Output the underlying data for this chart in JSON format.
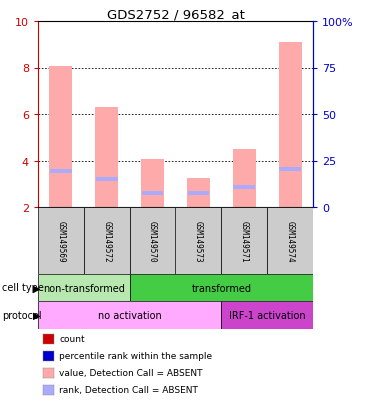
{
  "title": "GDS2752 / 96582_at",
  "samples": [
    "GSM149569",
    "GSM149572",
    "GSM149570",
    "GSM149573",
    "GSM149571",
    "GSM149574"
  ],
  "bar_bottom": 2.0,
  "pink_tops": [
    8.05,
    6.3,
    4.05,
    3.25,
    4.5,
    9.1
  ],
  "blue_vals": [
    3.55,
    3.2,
    2.6,
    2.6,
    2.85,
    3.65
  ],
  "ylim_left": [
    2,
    10
  ],
  "ylim_right": [
    0,
    100
  ],
  "yticks_left": [
    2,
    4,
    6,
    8,
    10
  ],
  "yticks_right": [
    0,
    25,
    50,
    75,
    100
  ],
  "ytick_labels_left": [
    "2",
    "4",
    "6",
    "8",
    "10"
  ],
  "ytick_labels_right": [
    "0",
    "25",
    "50",
    "75",
    "100%"
  ],
  "cell_type_label": "cell type",
  "protocol_label": "protocol",
  "cell_type_groups": [
    {
      "label": "non-transformed",
      "start": 0,
      "end": 2,
      "color": "#b8e8b0"
    },
    {
      "label": "transformed",
      "start": 2,
      "end": 6,
      "color": "#44cc44"
    }
  ],
  "protocol_groups": [
    {
      "label": "no activation",
      "start": 0,
      "end": 4,
      "color": "#ffaaff"
    },
    {
      "label": "IRF-1 activation",
      "start": 4,
      "end": 6,
      "color": "#cc44cc"
    }
  ],
  "legend_items": [
    {
      "color": "#cc0000",
      "label": "count"
    },
    {
      "color": "#0000cc",
      "label": "percentile rank within the sample"
    },
    {
      "color": "#ffaaaa",
      "label": "value, Detection Call = ABSENT"
    },
    {
      "color": "#aaaaff",
      "label": "rank, Detection Call = ABSENT"
    }
  ],
  "bar_pink_color": "#ffaaaa",
  "bar_blue_color": "#aaaaff",
  "bar_width": 0.5,
  "background_color": "#ffffff",
  "sample_box_color": "#cccccc",
  "left_axis_color": "#cc0000",
  "right_axis_color": "#0000cc",
  "grid_dotted_color": "#000000"
}
